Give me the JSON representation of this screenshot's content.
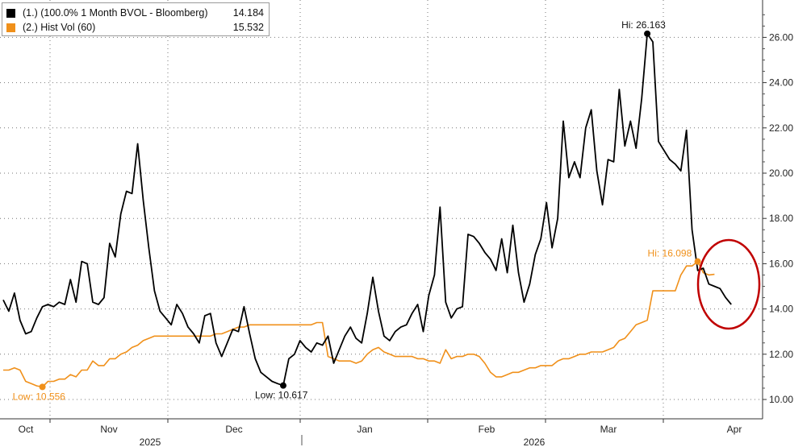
{
  "legend": {
    "items": [
      {
        "label": "(1.) (100.0% 1 Month BVOL - Bloomberg)",
        "value": "14.184",
        "color": "#000000"
      },
      {
        "label": "(2.) Hist Vol (60)",
        "value": "15.532",
        "color": "#f0901a"
      }
    ]
  },
  "chart_data": {
    "type": "line",
    "title": "",
    "xlabel": "",
    "ylabel": "",
    "y_axis_side": "right",
    "ylim": [
      9.5,
      27.6
    ],
    "yticks": [
      "10.00",
      "12.00",
      "14.00",
      "16.00",
      "18.00",
      "20.00",
      "22.00",
      "24.00",
      "26.00"
    ],
    "grid": true,
    "legend_placement": "top-left",
    "x_month_labels": [
      "Oct",
      "Nov",
      "Dec",
      "Jan",
      "Feb",
      "Mar",
      "Apr"
    ],
    "x_year_labels": [
      "2025",
      "2026"
    ],
    "series": [
      {
        "name": "(1.) (100.0% 1 Month BVOL - Bloomberg)",
        "color": "#000000",
        "points": [
          [
            0,
            14.4
          ],
          [
            1,
            13.9
          ],
          [
            2,
            14.7
          ],
          [
            3,
            13.5
          ],
          [
            4,
            12.9
          ],
          [
            5,
            13.0
          ],
          [
            6,
            13.6
          ],
          [
            7,
            14.1
          ],
          [
            8,
            14.2
          ],
          [
            9,
            14.1
          ],
          [
            10,
            14.3
          ],
          [
            11,
            14.2
          ],
          [
            12,
            15.3
          ],
          [
            13,
            14.3
          ],
          [
            14,
            16.1
          ],
          [
            15,
            16.0
          ],
          [
            16,
            14.3
          ],
          [
            17,
            14.2
          ],
          [
            18,
            14.5
          ],
          [
            19,
            16.9
          ],
          [
            20,
            16.3
          ],
          [
            21,
            18.2
          ],
          [
            22,
            19.2
          ],
          [
            23,
            19.1
          ],
          [
            24,
            21.3
          ],
          [
            25,
            18.8
          ],
          [
            26,
            16.7
          ],
          [
            27,
            14.8
          ],
          [
            28,
            13.9
          ],
          [
            29,
            13.6
          ],
          [
            30,
            13.3
          ],
          [
            31,
            14.2
          ],
          [
            32,
            13.8
          ],
          [
            33,
            13.2
          ],
          [
            34,
            12.9
          ],
          [
            35,
            12.5
          ],
          [
            36,
            13.7
          ],
          [
            37,
            13.8
          ],
          [
            38,
            12.5
          ],
          [
            39,
            11.9
          ],
          [
            40,
            12.5
          ],
          [
            41,
            13.1
          ],
          [
            42,
            13.0
          ],
          [
            43,
            14.1
          ],
          [
            44,
            12.9
          ],
          [
            45,
            11.8
          ],
          [
            46,
            11.2
          ],
          [
            47,
            11.0
          ],
          [
            48,
            10.8
          ],
          [
            49,
            10.7
          ],
          [
            50,
            10.617
          ],
          [
            51,
            11.8
          ],
          [
            52,
            12.0
          ],
          [
            53,
            12.6
          ],
          [
            54,
            12.3
          ],
          [
            55,
            12.1
          ],
          [
            56,
            12.5
          ],
          [
            57,
            12.4
          ],
          [
            58,
            12.8
          ],
          [
            59,
            11.6
          ],
          [
            60,
            12.2
          ],
          [
            61,
            12.8
          ],
          [
            62,
            13.2
          ],
          [
            63,
            12.7
          ],
          [
            64,
            12.5
          ],
          [
            65,
            13.8
          ],
          [
            66,
            15.4
          ],
          [
            67,
            13.9
          ],
          [
            68,
            12.8
          ],
          [
            69,
            12.6
          ],
          [
            70,
            13.0
          ],
          [
            71,
            13.2
          ],
          [
            72,
            13.3
          ],
          [
            73,
            13.8
          ],
          [
            74,
            14.2
          ],
          [
            75,
            13.0
          ],
          [
            76,
            14.6
          ],
          [
            77,
            15.5
          ],
          [
            78,
            18.5
          ],
          [
            79,
            14.3
          ],
          [
            80,
            13.6
          ],
          [
            81,
            14.0
          ],
          [
            82,
            14.1
          ],
          [
            83,
            17.3
          ],
          [
            84,
            17.2
          ],
          [
            85,
            16.9
          ],
          [
            86,
            16.5
          ],
          [
            87,
            16.2
          ],
          [
            88,
            15.7
          ],
          [
            89,
            17.1
          ],
          [
            90,
            15.6
          ],
          [
            91,
            17.7
          ],
          [
            92,
            15.6
          ],
          [
            93,
            14.3
          ],
          [
            94,
            15.1
          ],
          [
            95,
            16.4
          ],
          [
            96,
            17.1
          ],
          [
            97,
            18.7
          ],
          [
            98,
            16.7
          ],
          [
            99,
            18.0
          ],
          [
            100,
            22.3
          ],
          [
            101,
            19.8
          ],
          [
            102,
            20.5
          ],
          [
            103,
            19.8
          ],
          [
            104,
            22.0
          ],
          [
            105,
            22.8
          ],
          [
            106,
            20.1
          ],
          [
            107,
            18.6
          ],
          [
            108,
            20.6
          ],
          [
            109,
            20.5
          ],
          [
            110,
            23.7
          ],
          [
            111,
            21.2
          ],
          [
            112,
            22.3
          ],
          [
            113,
            21.1
          ],
          [
            114,
            23.3
          ],
          [
            115,
            26.163
          ],
          [
            116,
            25.8
          ],
          [
            117,
            21.4
          ],
          [
            118,
            21.0
          ],
          [
            119,
            20.6
          ],
          [
            120,
            20.4
          ],
          [
            121,
            20.1
          ],
          [
            122,
            21.9
          ],
          [
            123,
            17.5
          ],
          [
            124,
            15.7
          ],
          [
            125,
            15.8
          ],
          [
            126,
            15.1
          ],
          [
            127,
            15.0
          ],
          [
            128,
            14.9
          ],
          [
            129,
            14.5
          ],
          [
            130,
            14.2
          ]
        ]
      },
      {
        "name": "(2.) Hist Vol (60)",
        "color": "#f0901a",
        "points": [
          [
            0,
            11.3
          ],
          [
            1,
            11.3
          ],
          [
            2,
            11.4
          ],
          [
            3,
            11.3
          ],
          [
            4,
            10.8
          ],
          [
            5,
            10.7
          ],
          [
            6,
            10.6
          ],
          [
            7,
            10.556
          ],
          [
            8,
            10.8
          ],
          [
            9,
            10.8
          ],
          [
            10,
            10.9
          ],
          [
            11,
            10.9
          ],
          [
            12,
            11.1
          ],
          [
            13,
            11.0
          ],
          [
            14,
            11.3
          ],
          [
            15,
            11.3
          ],
          [
            16,
            11.7
          ],
          [
            17,
            11.5
          ],
          [
            18,
            11.5
          ],
          [
            19,
            11.8
          ],
          [
            20,
            11.8
          ],
          [
            21,
            12.0
          ],
          [
            22,
            12.1
          ],
          [
            23,
            12.3
          ],
          [
            24,
            12.4
          ],
          [
            25,
            12.6
          ],
          [
            26,
            12.7
          ],
          [
            27,
            12.8
          ],
          [
            28,
            12.8
          ],
          [
            29,
            12.8
          ],
          [
            30,
            12.8
          ],
          [
            31,
            12.8
          ],
          [
            32,
            12.8
          ],
          [
            33,
            12.8
          ],
          [
            34,
            12.8
          ],
          [
            35,
            12.8
          ],
          [
            36,
            12.8
          ],
          [
            37,
            12.8
          ],
          [
            38,
            12.9
          ],
          [
            39,
            12.9
          ],
          [
            40,
            13.0
          ],
          [
            41,
            13.1
          ],
          [
            42,
            13.2
          ],
          [
            43,
            13.2
          ],
          [
            44,
            13.3
          ],
          [
            45,
            13.3
          ],
          [
            46,
            13.3
          ],
          [
            47,
            13.3
          ],
          [
            48,
            13.3
          ],
          [
            49,
            13.3
          ],
          [
            50,
            13.3
          ],
          [
            51,
            13.3
          ],
          [
            52,
            13.3
          ],
          [
            53,
            13.3
          ],
          [
            54,
            13.3
          ],
          [
            55,
            13.3
          ],
          [
            56,
            13.4
          ],
          [
            57,
            13.4
          ],
          [
            58,
            11.9
          ],
          [
            59,
            11.8
          ],
          [
            60,
            11.7
          ],
          [
            61,
            11.7
          ],
          [
            62,
            11.7
          ],
          [
            63,
            11.6
          ],
          [
            64,
            11.7
          ],
          [
            65,
            12.0
          ],
          [
            66,
            12.2
          ],
          [
            67,
            12.3
          ],
          [
            68,
            12.1
          ],
          [
            69,
            12.0
          ],
          [
            70,
            11.9
          ],
          [
            71,
            11.9
          ],
          [
            72,
            11.9
          ],
          [
            73,
            11.9
          ],
          [
            74,
            11.8
          ],
          [
            75,
            11.8
          ],
          [
            76,
            11.7
          ],
          [
            77,
            11.7
          ],
          [
            78,
            11.6
          ],
          [
            79,
            12.2
          ],
          [
            80,
            11.8
          ],
          [
            81,
            11.9
          ],
          [
            82,
            11.9
          ],
          [
            83,
            12.0
          ],
          [
            84,
            12.0
          ],
          [
            85,
            11.9
          ],
          [
            86,
            11.6
          ],
          [
            87,
            11.2
          ],
          [
            88,
            11.0
          ],
          [
            89,
            11.0
          ],
          [
            90,
            11.1
          ],
          [
            91,
            11.2
          ],
          [
            92,
            11.2
          ],
          [
            93,
            11.3
          ],
          [
            94,
            11.4
          ],
          [
            95,
            11.4
          ],
          [
            96,
            11.5
          ],
          [
            97,
            11.5
          ],
          [
            98,
            11.5
          ],
          [
            99,
            11.7
          ],
          [
            100,
            11.8
          ],
          [
            101,
            11.8
          ],
          [
            102,
            11.9
          ],
          [
            103,
            12.0
          ],
          [
            104,
            12.0
          ],
          [
            105,
            12.1
          ],
          [
            106,
            12.1
          ],
          [
            107,
            12.1
          ],
          [
            108,
            12.2
          ],
          [
            109,
            12.3
          ],
          [
            110,
            12.6
          ],
          [
            111,
            12.7
          ],
          [
            112,
            13.0
          ],
          [
            113,
            13.3
          ],
          [
            114,
            13.4
          ],
          [
            115,
            13.5
          ],
          [
            116,
            14.8
          ],
          [
            117,
            14.8
          ],
          [
            118,
            14.8
          ],
          [
            119,
            14.8
          ],
          [
            120,
            14.8
          ],
          [
            121,
            15.5
          ],
          [
            122,
            15.9
          ],
          [
            123,
            15.9
          ],
          [
            124,
            16.098
          ],
          [
            125,
            15.6
          ],
          [
            126,
            15.5
          ],
          [
            127,
            15.532
          ]
        ]
      }
    ],
    "annotations": [
      {
        "text": "Hi: 26.163",
        "series": 0,
        "x": 115,
        "y": 26.163
      },
      {
        "text": "Low: 10.617",
        "series": 0,
        "x": 50,
        "y": 10.617
      },
      {
        "text": "Hi: 16.098",
        "series": 1,
        "x": 124,
        "y": 16.098
      },
      {
        "text": "Low: 10.556",
        "series": 1,
        "x": 7,
        "y": 10.556
      }
    ],
    "highlight": {
      "shape": "ellipse",
      "color": "#c00000",
      "around": "last values of both series"
    }
  }
}
